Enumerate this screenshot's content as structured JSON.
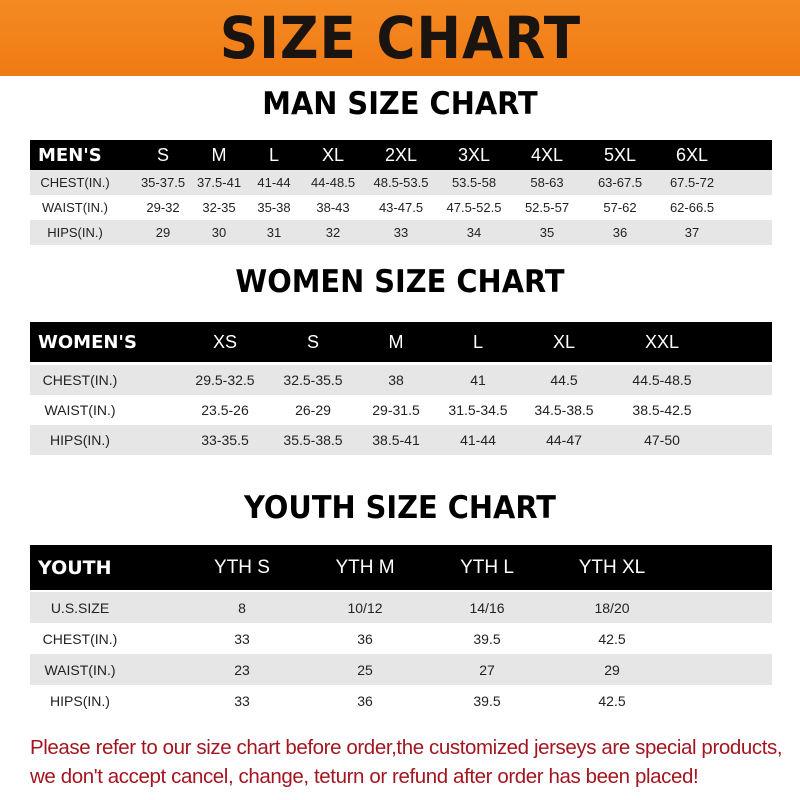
{
  "banner_title": "SIZE CHART",
  "men": {
    "title": "MAN SIZE CHART",
    "header": [
      "MEN'S",
      "S",
      "M",
      "L",
      "XL",
      "2XL",
      "3XL",
      "4XL",
      "5XL",
      "6XL"
    ],
    "rows": [
      [
        "CHEST(IN.)",
        "35-37.5",
        "37.5-41",
        "41-44",
        "44-48.5",
        "48.5-53.5",
        "53.5-58",
        "58-63",
        "63-67.5",
        "67.5-72"
      ],
      [
        "WAIST(IN.)",
        "29-32",
        "32-35",
        "35-38",
        "38-43",
        "43-47.5",
        "47.5-52.5",
        "52.5-57",
        "57-62",
        "62-66.5"
      ],
      [
        "HIPS(IN.)",
        "29",
        "30",
        "31",
        "32",
        "33",
        "34",
        "35",
        "36",
        "37"
      ]
    ]
  },
  "women": {
    "title": "WOMEN SIZE CHART",
    "header": [
      "WOMEN'S",
      "XS",
      "S",
      "M",
      "L",
      "XL",
      "XXL"
    ],
    "rows": [
      [
        "CHEST(IN.)",
        "29.5-32.5",
        "32.5-35.5",
        "38",
        "41",
        "44.5",
        "44.5-48.5"
      ],
      [
        "WAIST(IN.)",
        "23.5-26",
        "26-29",
        "29-31.5",
        "31.5-34.5",
        "34.5-38.5",
        "38.5-42.5"
      ],
      [
        "HIPS(IN.)",
        "33-35.5",
        "35.5-38.5",
        "38.5-41",
        "41-44",
        "44-47",
        "47-50"
      ]
    ]
  },
  "youth": {
    "title": "YOUTH SIZE CHART",
    "header": [
      "YOUTH",
      "YTH S",
      "YTH M",
      "YTH L",
      "YTH XL"
    ],
    "rows": [
      [
        "U.S.SIZE",
        "8",
        "10/12",
        "14/16",
        "18/20"
      ],
      [
        "CHEST(IN.)",
        "33",
        "36",
        "39.5",
        "42.5"
      ],
      [
        "WAIST(IN.)",
        "23",
        "25",
        "27",
        "29"
      ],
      [
        "HIPS(IN.)",
        "33",
        "36",
        "39.5",
        "42.5"
      ]
    ]
  },
  "notice": {
    "line1": "Please refer to our size chart before order,the customized jerseys are special products,",
    "line2": "we don't accept cancel, change, teturn or refund after order has been placed!"
  },
  "colors": {
    "banner": "#f58a22",
    "header_bg": "#000000",
    "stripe": "#e6e6e6",
    "notice": "#a3161f"
  }
}
